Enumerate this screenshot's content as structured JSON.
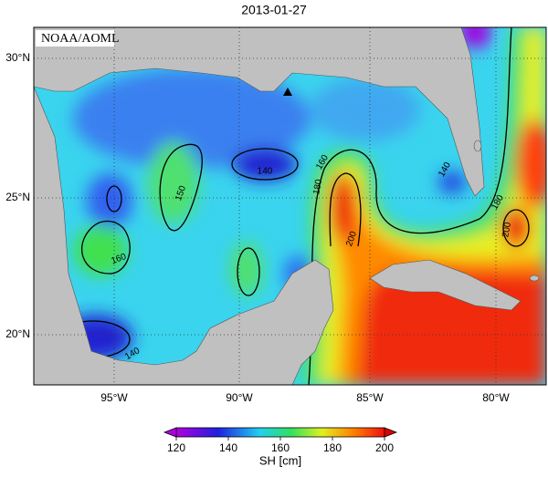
{
  "title": "2013-01-27",
  "credit": "NOAA/AOML",
  "lat_labels": [
    "30°N",
    "25°N",
    "20°N"
  ],
  "lon_labels": [
    "95°W",
    "90°W",
    "85°W",
    "80°W"
  ],
  "contour_labels": [
    140,
    150,
    160,
    180,
    200,
    160,
    140,
    180,
    200,
    140
  ],
  "colorbar": {
    "label": "SH [cm]",
    "ticks": [
      120,
      140,
      160,
      180,
      200
    ]
  }
}
